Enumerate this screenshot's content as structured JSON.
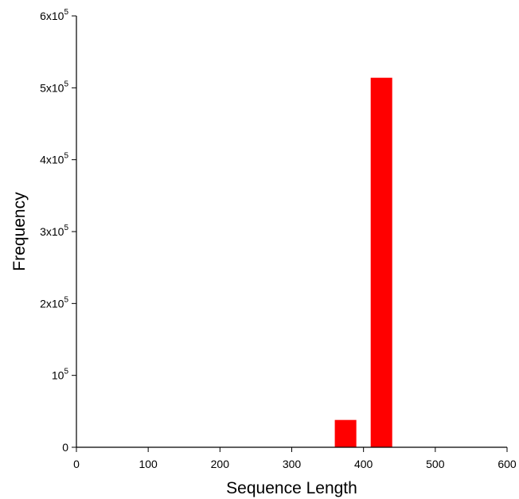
{
  "chart_data": {
    "type": "bar",
    "xlabel": "Sequence Length",
    "ylabel": "Frequency",
    "xlim": [
      0,
      600
    ],
    "ylim": [
      0,
      600000
    ],
    "x_ticks": [
      0,
      100,
      200,
      300,
      400,
      500,
      600
    ],
    "x_tick_labels": [
      "0",
      "100",
      "200",
      "300",
      "400",
      "500",
      "600"
    ],
    "y_ticks": [
      {
        "value": 0,
        "mantissa": "0",
        "exp": ""
      },
      {
        "value": 100000,
        "mantissa": "10",
        "exp": "5"
      },
      {
        "value": 200000,
        "mantissa": "2x10",
        "exp": "5"
      },
      {
        "value": 300000,
        "mantissa": "3x10",
        "exp": "5"
      },
      {
        "value": 400000,
        "mantissa": "4x10",
        "exp": "5"
      },
      {
        "value": 500000,
        "mantissa": "5x10",
        "exp": "5"
      },
      {
        "value": 600000,
        "mantissa": "6x10",
        "exp": "5"
      }
    ],
    "bars": [
      {
        "x_start": 360,
        "x_end": 390,
        "value": 38000
      },
      {
        "x_start": 410,
        "x_end": 440,
        "value": 514000
      }
    ],
    "bar_color": "#ff0000",
    "grid": false
  }
}
